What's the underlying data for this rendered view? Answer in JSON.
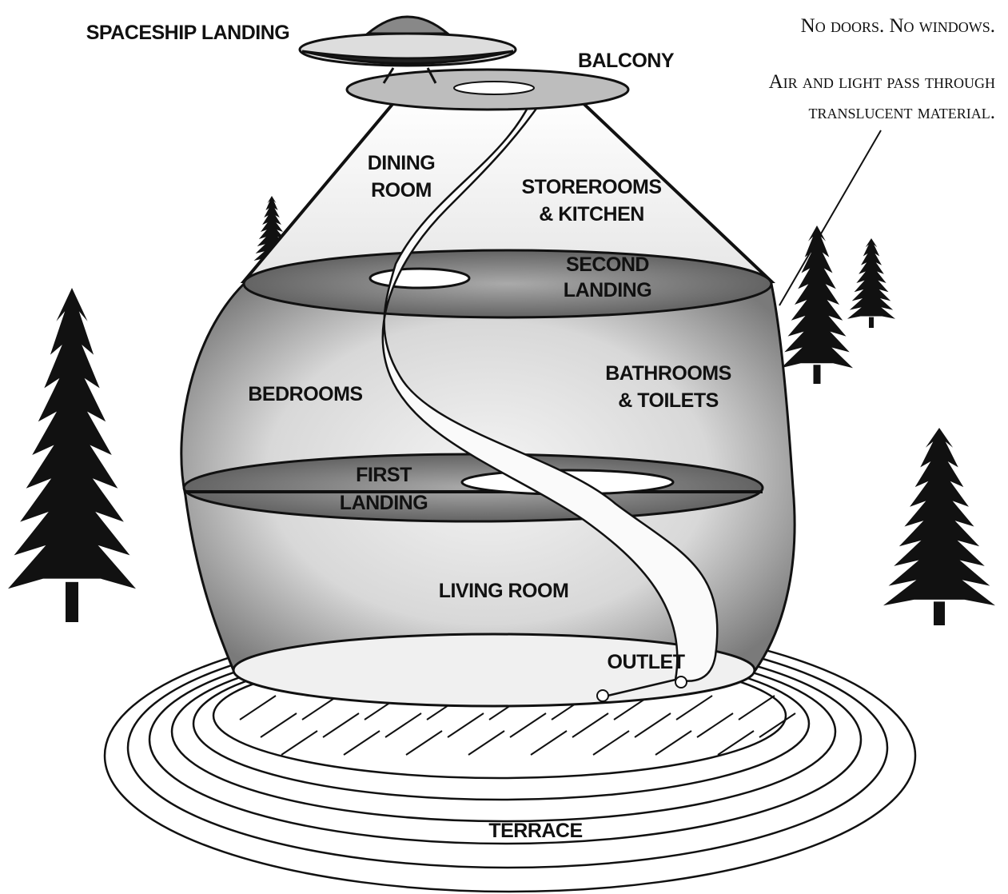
{
  "note": {
    "lines": [
      "No doors. No windows.",
      "Air and light pass through",
      "translucent material."
    ]
  },
  "labels": [
    {
      "lines": [
        "SPACESHIP LANDING"
      ]
    },
    {
      "lines": [
        "BALCONY"
      ]
    },
    {
      "lines": [
        "DINING",
        "ROOM"
      ]
    },
    {
      "lines": [
        "STOREROOMS",
        "& KITCHEN"
      ]
    },
    {
      "lines": [
        "SECOND",
        "LANDING"
      ]
    },
    {
      "lines": [
        "BEDROOMS"
      ]
    },
    {
      "lines": [
        "BATHROOMS",
        "& TOILETS"
      ]
    },
    {
      "lines": [
        "FIRST",
        "LANDING"
      ]
    },
    {
      "lines": [
        "LIVING ROOM"
      ]
    },
    {
      "lines": [
        "OUTLET"
      ]
    },
    {
      "lines": [
        "TERRACE"
      ]
    }
  ]
}
